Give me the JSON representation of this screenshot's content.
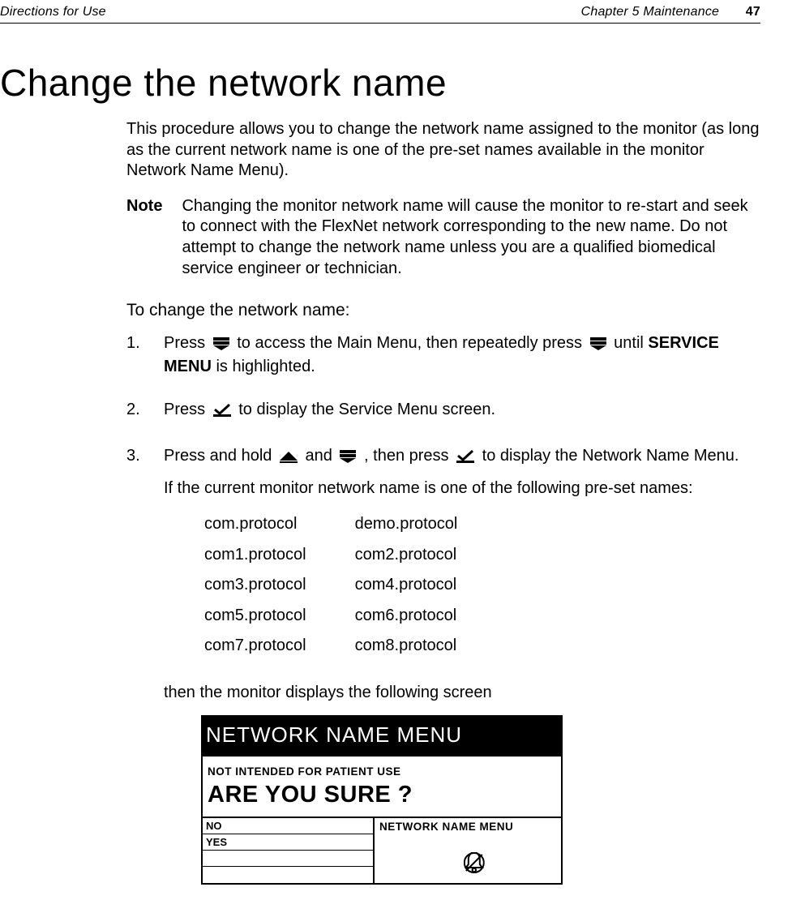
{
  "run_header": {
    "left": "Directions for Use",
    "right": "Chapter 5   Maintenance",
    "page_num": "47"
  },
  "title": "Change the network name",
  "intro": "This procedure allows you to change the network name assigned to the monitor (as long as the current network name is one of the pre-set names available in the monitor Network Name Menu).",
  "note_label": "Note",
  "note_body": "Changing the monitor network name will cause the monitor to re-start and seek to connect with the FlexNet network corresponding to the new name. Do not attempt to change the network name unless you are a qualified biomedical service engineer or technician.",
  "sub_heading": "To change the network name:",
  "steps": {
    "s1a": "Press ",
    "s1b": " to access the Main Menu, then repeatedly press ",
    "s1c": " until ",
    "s1d": "SERVICE MENU",
    "s1e": " is highlighted.",
    "s2a": "Press ",
    "s2b": " to display the Service Menu screen.",
    "s3a": "Press and hold ",
    "s3b": " and ",
    "s3c": ", then press ",
    "s3d": " to display the Network Name Menu.",
    "s3_sub": "If the current monitor network name is one of the following pre-set names:"
  },
  "protocols": {
    "rows": [
      [
        "com.protocol",
        "demo.protocol"
      ],
      [
        "com1.protocol",
        "com2.protocol"
      ],
      [
        "com3.protocol",
        "com4.protocol"
      ],
      [
        "com5.protocol",
        "com6.protocol"
      ],
      [
        "com7.protocol",
        "com8.protocol"
      ]
    ]
  },
  "then_text": "then the monitor displays the following screen",
  "screen": {
    "title": "NETWORK NAME MENU",
    "line1": "NOT INTENDED FOR PATIENT USE",
    "line2": "ARE YOU SURE ?",
    "opt_no": "NO",
    "opt_yes": "YES",
    "right_label": "NETWORK NAME MENU"
  },
  "icons": {
    "down_stack_color": "#000000",
    "up_triangle_color": "#000000",
    "check_color": "#000000",
    "bell_slash_color": "#000000"
  }
}
